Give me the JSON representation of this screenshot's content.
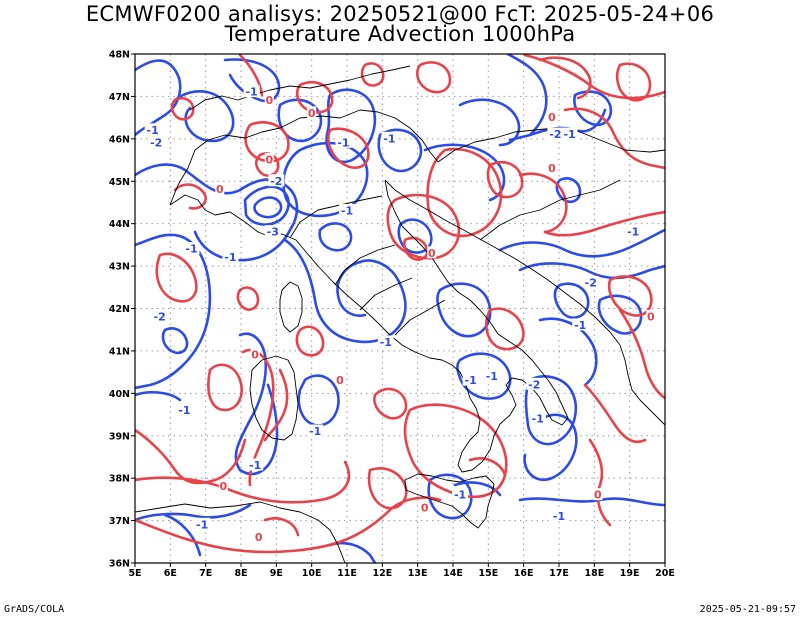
{
  "title_line1": "ECMWF0200 analisys: 20250521@00 FcT: 2025-05-24+06",
  "title_line2": "Temperature Advection 1000hPa",
  "footer_left": "GrADS/COLA",
  "footer_right": "2025-05-21-09:57",
  "map": {
    "lon_range": [
      5,
      20
    ],
    "lat_range": [
      36,
      48
    ],
    "lon_ticks": [
      "5E",
      "6E",
      "7E",
      "8E",
      "9E",
      "10E",
      "11E",
      "12E",
      "13E",
      "14E",
      "15E",
      "16E",
      "17E",
      "18E",
      "19E",
      "20E"
    ],
    "lat_ticks": [
      "36N",
      "37N",
      "38N",
      "39N",
      "40N",
      "41N",
      "42N",
      "43N",
      "44N",
      "45N",
      "46N",
      "47N",
      "48N"
    ],
    "grid": "dotted",
    "colors": {
      "positive": "#e8424a",
      "negative": "#2c4be8",
      "coast": "#000000"
    },
    "contour_labels": [
      {
        "text": "-1",
        "lon": 6.6,
        "lat": 43.4,
        "color": "#2c4be8"
      },
      {
        "text": "-1",
        "lon": 7.7,
        "lat": 43.2,
        "color": "#2c4be8"
      },
      {
        "text": "-2",
        "lon": 5.7,
        "lat": 41.8,
        "color": "#2c4be8"
      },
      {
        "text": "-2",
        "lon": 5.6,
        "lat": 45.9,
        "color": "#2c4be8"
      },
      {
        "text": "-1",
        "lon": 5.5,
        "lat": 46.2,
        "color": "#2c4be8"
      },
      {
        "text": "-1",
        "lon": 8.3,
        "lat": 47.1,
        "color": "#2c4be8"
      },
      {
        "text": "-2",
        "lon": 9.0,
        "lat": 45.0,
        "color": "#2c4be8"
      },
      {
        "text": "-3",
        "lon": 8.9,
        "lat": 43.8,
        "color": "#2c4be8"
      },
      {
        "text": "-1",
        "lon": 10.9,
        "lat": 45.9,
        "color": "#2c4be8"
      },
      {
        "text": "-1",
        "lon": 12.2,
        "lat": 46.0,
        "color": "#2c4be8"
      },
      {
        "text": "-1",
        "lon": 11.0,
        "lat": 44.3,
        "color": "#2c4be8"
      },
      {
        "text": "-1",
        "lon": 12.1,
        "lat": 41.2,
        "color": "#2c4be8"
      },
      {
        "text": "-1",
        "lon": 15.1,
        "lat": 40.4,
        "color": "#2c4be8"
      },
      {
        "text": "-1",
        "lon": 14.5,
        "lat": 40.3,
        "color": "#2c4be8"
      },
      {
        "text": "-2",
        "lon": 16.3,
        "lat": 40.2,
        "color": "#2c4be8"
      },
      {
        "text": "-1",
        "lon": 16.4,
        "lat": 39.4,
        "color": "#2c4be8"
      },
      {
        "text": "-1",
        "lon": 17.6,
        "lat": 41.6,
        "color": "#2c4be8"
      },
      {
        "text": "-2",
        "lon": 17.9,
        "lat": 42.6,
        "color": "#2c4be8"
      },
      {
        "text": "-1",
        "lon": 19.1,
        "lat": 43.8,
        "color": "#2c4be8"
      },
      {
        "text": "-2",
        "lon": 16.9,
        "lat": 46.1,
        "color": "#2c4be8"
      },
      {
        "text": "-1",
        "lon": 17.3,
        "lat": 46.1,
        "color": "#2c4be8"
      },
      {
        "text": "-1",
        "lon": 6.4,
        "lat": 39.6,
        "color": "#2c4be8"
      },
      {
        "text": "-1",
        "lon": 10.1,
        "lat": 39.1,
        "color": "#2c4be8"
      },
      {
        "text": "-1",
        "lon": 8.4,
        "lat": 38.3,
        "color": "#2c4be8"
      },
      {
        "text": "-1",
        "lon": 14.2,
        "lat": 37.6,
        "color": "#2c4be8"
      },
      {
        "text": "-1",
        "lon": 6.9,
        "lat": 36.9,
        "color": "#2c4be8"
      },
      {
        "text": "-1",
        "lon": 17.0,
        "lat": 37.1,
        "color": "#2c4be8"
      },
      {
        "text": "0",
        "lon": 7.4,
        "lat": 44.8,
        "color": "#e8424a"
      },
      {
        "text": "0",
        "lon": 10.0,
        "lat": 46.6,
        "color": "#e8424a"
      },
      {
        "text": "0",
        "lon": 8.8,
        "lat": 46.9,
        "color": "#e8424a"
      },
      {
        "text": "0",
        "lon": 8.8,
        "lat": 45.5,
        "color": "#e8424a"
      },
      {
        "text": "0",
        "lon": 10.8,
        "lat": 40.3,
        "color": "#e8424a"
      },
      {
        "text": "0",
        "lon": 8.4,
        "lat": 40.9,
        "color": "#e8424a"
      },
      {
        "text": "0",
        "lon": 7.5,
        "lat": 37.8,
        "color": "#e8424a"
      },
      {
        "text": "0",
        "lon": 13.2,
        "lat": 37.3,
        "color": "#e8424a"
      },
      {
        "text": "0",
        "lon": 18.1,
        "lat": 37.6,
        "color": "#e8424a"
      },
      {
        "text": "0",
        "lon": 19.6,
        "lat": 41.8,
        "color": "#e8424a"
      },
      {
        "text": "0",
        "lon": 16.8,
        "lat": 46.5,
        "color": "#e8424a"
      },
      {
        "text": "0",
        "lon": 16.8,
        "lat": 45.3,
        "color": "#e8424a"
      },
      {
        "text": "0",
        "lon": 13.4,
        "lat": 43.3,
        "color": "#e8424a"
      },
      {
        "text": "0",
        "lon": 8.5,
        "lat": 36.6,
        "color": "#e8424a"
      }
    ]
  }
}
